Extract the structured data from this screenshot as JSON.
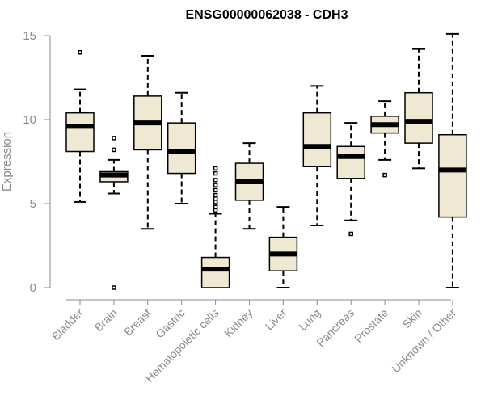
{
  "chart_data": {
    "type": "box",
    "title": "ENSG00000062038 - CDH3",
    "xlabel": "",
    "ylabel": "Expression",
    "ylim": [
      0,
      15
    ],
    "yticks": [
      0,
      5,
      10,
      15
    ],
    "grid": false,
    "colors": {
      "box_fill": "#efe8d2",
      "box_stroke": "#000000",
      "axis": "#8a8a8a",
      "text_gray": "#8a8a8a",
      "title": "#000000"
    },
    "categories": [
      "Bladder",
      "Brain",
      "Breast",
      "Gastric",
      "Hematopoietic cells",
      "Kidney",
      "Liver",
      "Lung",
      "Pancreas",
      "Prostate",
      "Skin",
      "Unknown / Other"
    ],
    "boxes": [
      {
        "name": "Bladder",
        "whisker_low": 5.1,
        "q1": 8.1,
        "median": 9.6,
        "q3": 10.4,
        "whisker_high": 11.8,
        "outliers": [
          14.0
        ]
      },
      {
        "name": "Brain",
        "whisker_low": 5.6,
        "q1": 6.3,
        "median": 6.7,
        "q3": 6.9,
        "whisker_high": 7.6,
        "outliers": [
          8.2,
          8.9,
          0.0
        ]
      },
      {
        "name": "Breast",
        "whisker_low": 3.5,
        "q1": 8.2,
        "median": 9.8,
        "q3": 11.4,
        "whisker_high": 13.8,
        "outliers": []
      },
      {
        "name": "Gastric",
        "whisker_low": 5.0,
        "q1": 6.8,
        "median": 8.1,
        "q3": 9.8,
        "whisker_high": 11.6,
        "outliers": []
      },
      {
        "name": "Hematopoietic cells",
        "whisker_low": 0.0,
        "q1": 0.0,
        "median": 1.1,
        "q3": 1.8,
        "whisker_high": 4.4,
        "outliers": [
          4.6,
          4.8,
          5.0,
          5.1,
          5.3,
          5.5,
          5.8,
          6.1,
          6.4,
          6.8,
          7.1
        ]
      },
      {
        "name": "Kidney",
        "whisker_low": 3.5,
        "q1": 5.2,
        "median": 6.3,
        "q3": 7.4,
        "whisker_high": 8.6,
        "outliers": []
      },
      {
        "name": "Liver",
        "whisker_low": 0.0,
        "q1": 1.0,
        "median": 2.0,
        "q3": 3.0,
        "whisker_high": 4.8,
        "outliers": []
      },
      {
        "name": "Lung",
        "whisker_low": 3.7,
        "q1": 7.2,
        "median": 8.4,
        "q3": 10.4,
        "whisker_high": 12.0,
        "outliers": []
      },
      {
        "name": "Pancreas",
        "whisker_low": 4.0,
        "q1": 6.5,
        "median": 7.8,
        "q3": 8.4,
        "whisker_high": 9.8,
        "outliers": [
          3.2
        ]
      },
      {
        "name": "Prostate",
        "whisker_low": 7.6,
        "q1": 9.2,
        "median": 9.7,
        "q3": 10.2,
        "whisker_high": 11.1,
        "outliers": [
          6.7
        ]
      },
      {
        "name": "Skin",
        "whisker_low": 7.1,
        "q1": 8.6,
        "median": 9.9,
        "q3": 11.6,
        "whisker_high": 14.2,
        "outliers": []
      },
      {
        "name": "Unknown / Other",
        "whisker_low": 0.0,
        "q1": 4.2,
        "median": 7.0,
        "q3": 9.1,
        "whisker_high": 15.1,
        "outliers": []
      }
    ]
  }
}
